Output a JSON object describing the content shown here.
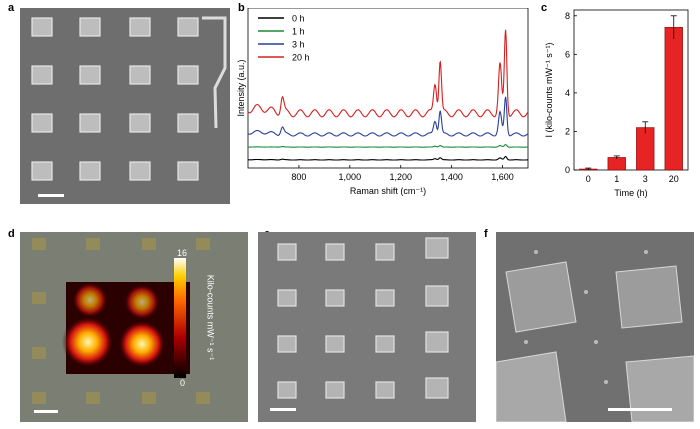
{
  "panels": {
    "a": "a",
    "b": "b",
    "c": "c",
    "d": "d",
    "e": "e",
    "f": "f"
  },
  "colors": {
    "sem_bg": "#6f6f6f",
    "optical_bg": "#7a7d72",
    "t0": "#000000",
    "t1": "#1a8a3a",
    "t3": "#2a3f9a",
    "t20": "#d62020",
    "bar": "#e62424"
  },
  "colorbar": {
    "max_label": "16",
    "min_label": "0",
    "label": "Kilo-counts mW⁻¹ s⁻¹"
  },
  "chart_data": [
    {
      "type": "line",
      "title": "",
      "xlabel": "Raman shift (cm⁻¹)",
      "ylabel": "Intensity (a.u.)",
      "xlim": [
        600,
        1700
      ],
      "xticks": [
        "800",
        "1,000",
        "1,200",
        "1,400",
        "1,600"
      ],
      "xtick_values": [
        800,
        1000,
        1200,
        1400,
        1600
      ],
      "legend_position": "top-left",
      "peaks": [
        735,
        1335,
        1355,
        1590,
        1612
      ],
      "series": [
        {
          "name": "0 h",
          "color": "#000000",
          "offset": 0.05,
          "scale": 0.04
        },
        {
          "name": "1 h",
          "color": "#1a8a3a",
          "offset": 0.13,
          "scale": 0.03
        },
        {
          "name": "3 h",
          "color": "#2a3f9a",
          "offset": 0.2,
          "scale": 0.45
        },
        {
          "name": "20 h",
          "color": "#d62020",
          "offset": 0.32,
          "scale": 1.0
        }
      ]
    },
    {
      "type": "bar",
      "title": "",
      "xlabel": "Time (h)",
      "ylabel": "I (kilo-counts mW⁻¹ s⁻¹)",
      "categories": [
        "0",
        "1",
        "3",
        "20"
      ],
      "values": [
        0.05,
        0.65,
        2.2,
        7.4
      ],
      "errors": [
        0.05,
        0.08,
        0.3,
        0.6
      ],
      "ylim": [
        0,
        8.3
      ],
      "yticks": [
        "0",
        "2",
        "4",
        "6",
        "8"
      ],
      "ytick_values": [
        0,
        2,
        4,
        6,
        8
      ]
    }
  ]
}
